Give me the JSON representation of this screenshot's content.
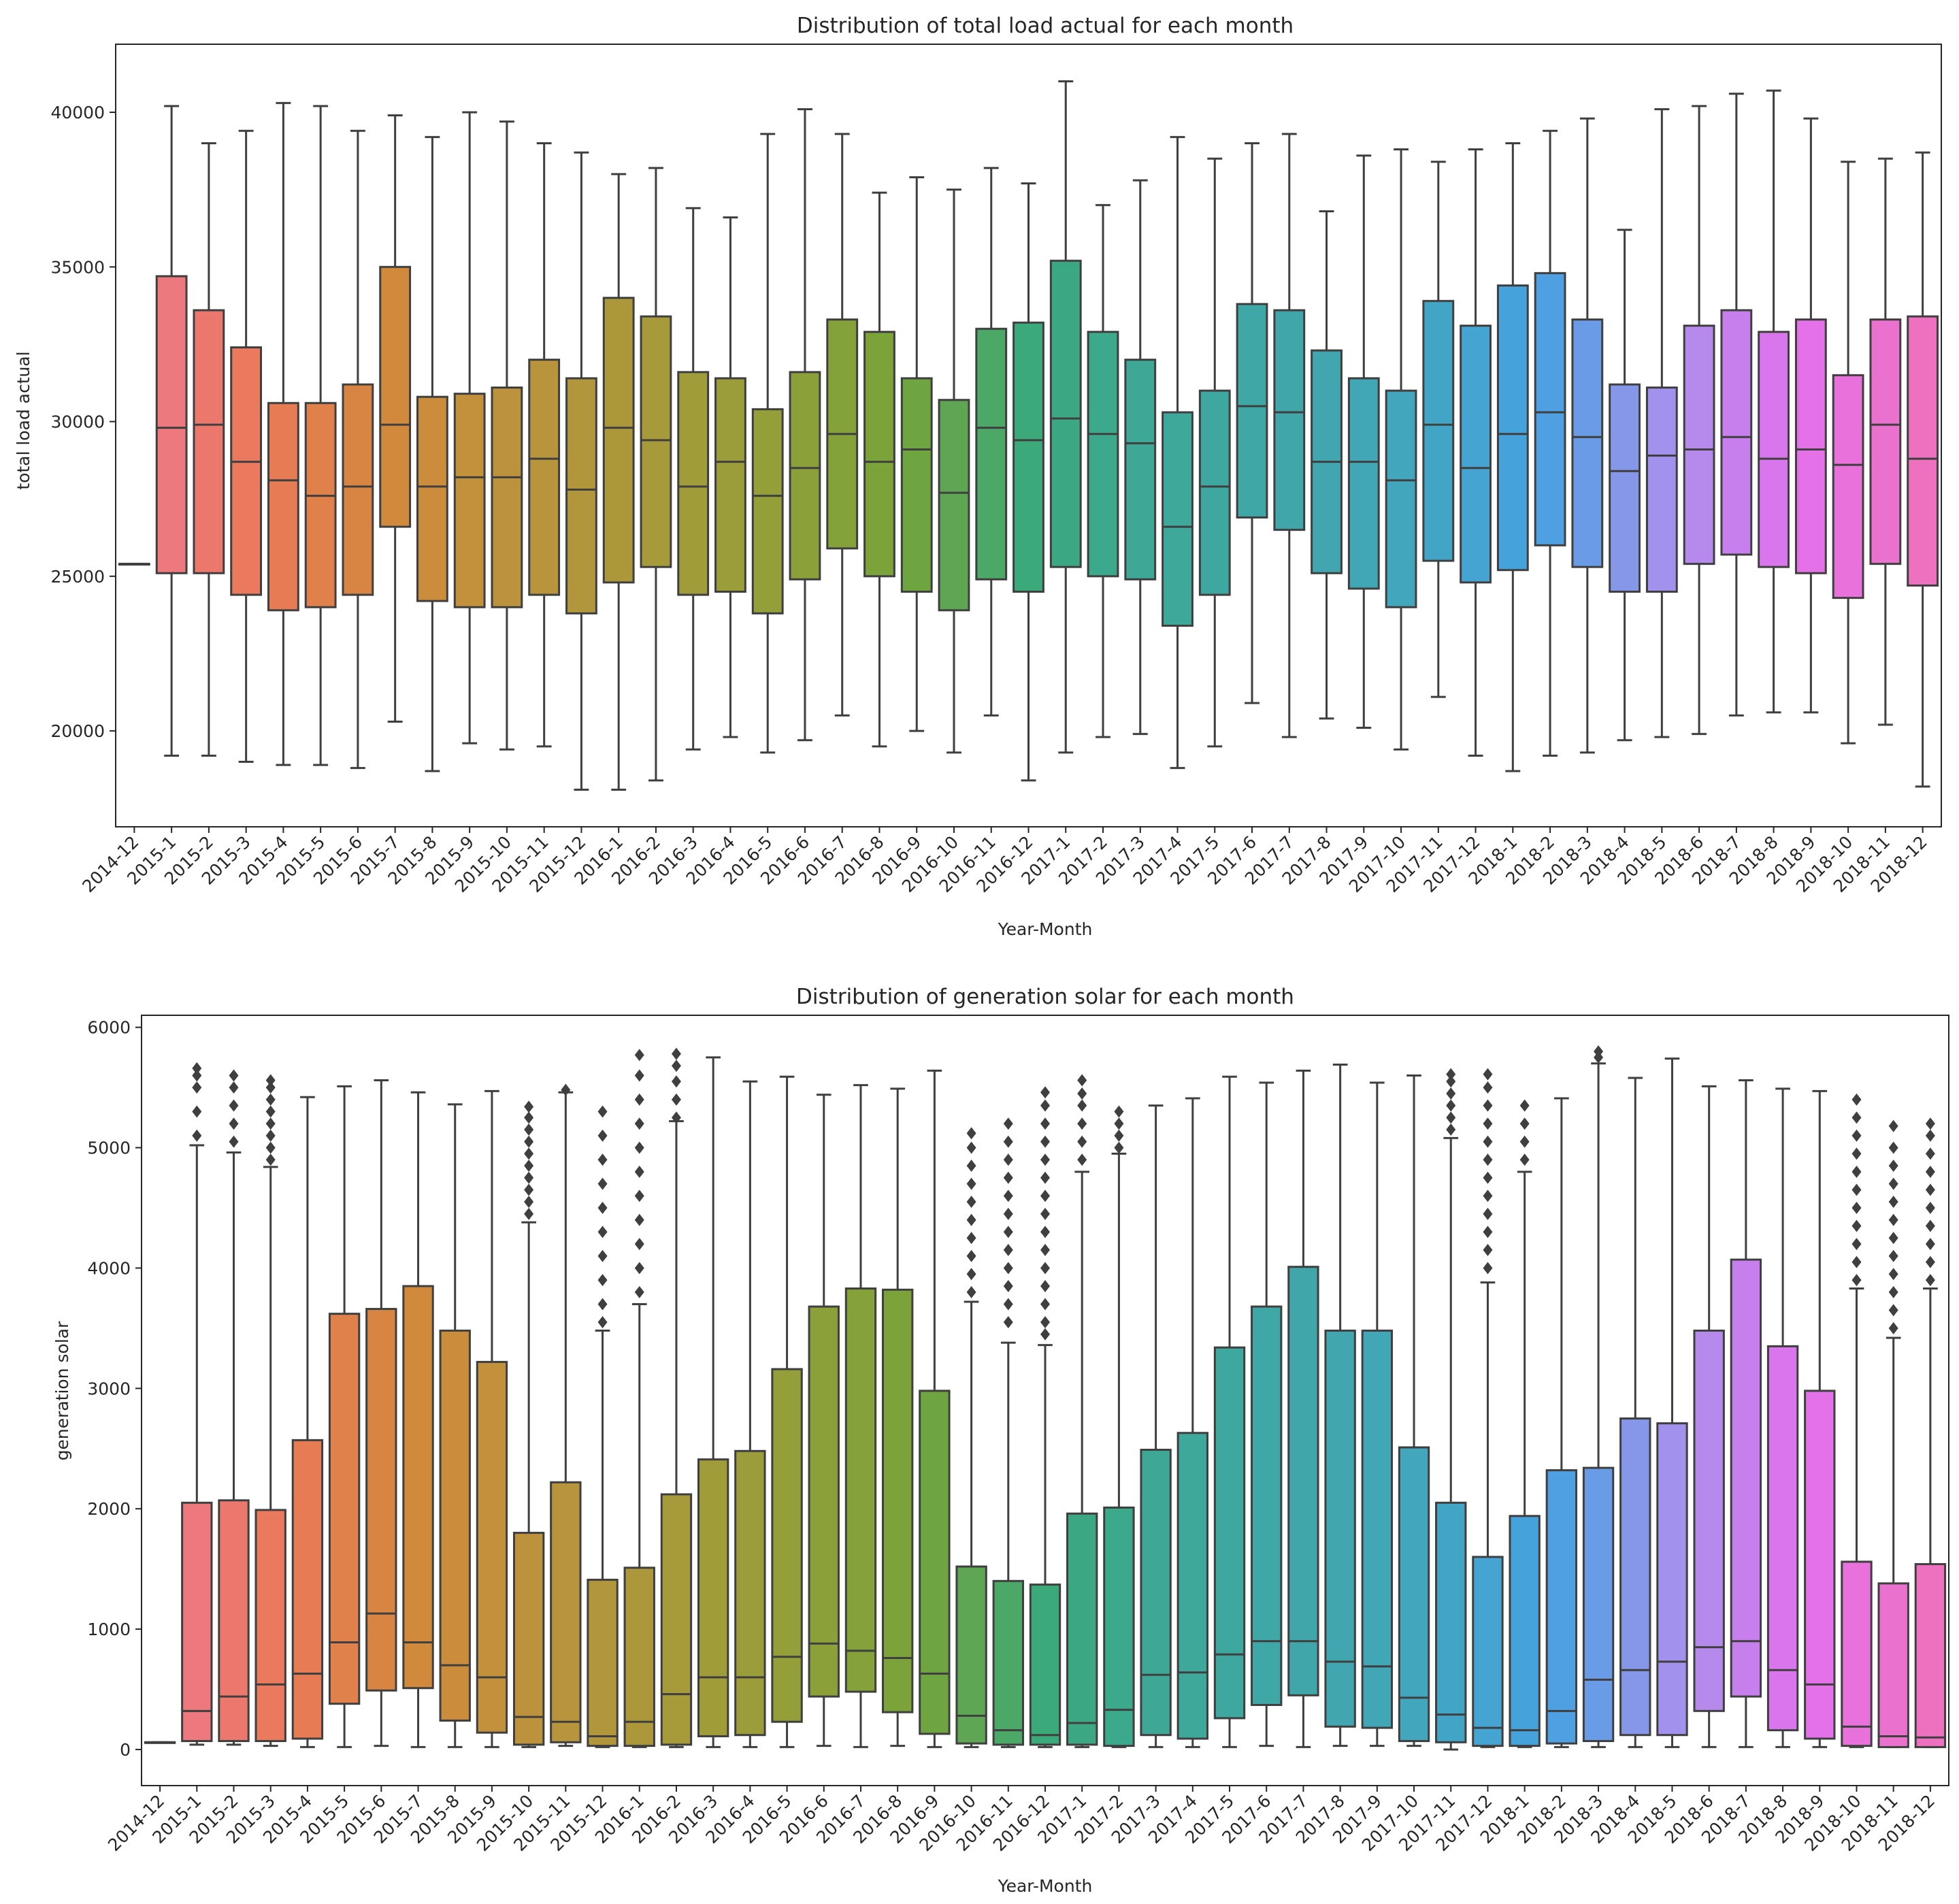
{
  "chart_data": [
    {
      "type": "box",
      "title": "Distribution of total load actual for each month",
      "xlabel": "Year-Month",
      "ylabel": "total load actual",
      "ylim": [
        16900,
        42200
      ],
      "yticks": [
        20000,
        25000,
        30000,
        35000,
        40000
      ],
      "categories": [
        "2014-12",
        "2015-1",
        "2015-2",
        "2015-3",
        "2015-4",
        "2015-5",
        "2015-6",
        "2015-7",
        "2015-8",
        "2015-9",
        "2015-10",
        "2015-11",
        "2015-12",
        "2016-1",
        "2016-2",
        "2016-3",
        "2016-4",
        "2016-5",
        "2016-6",
        "2016-7",
        "2016-8",
        "2016-9",
        "2016-10",
        "2016-11",
        "2016-12",
        "2017-1",
        "2017-2",
        "2017-3",
        "2017-4",
        "2017-5",
        "2017-6",
        "2017-7",
        "2017-8",
        "2017-9",
        "2017-10",
        "2017-11",
        "2017-12",
        "2018-1",
        "2018-2",
        "2018-3",
        "2018-4",
        "2018-5",
        "2018-6",
        "2018-7",
        "2018-8",
        "2018-9",
        "2018-10",
        "2018-11",
        "2018-12"
      ],
      "stats": [
        [
          25400,
          25400,
          25400,
          25400,
          25400
        ],
        [
          19200,
          25100,
          29800,
          34700,
          40200
        ],
        [
          19200,
          25100,
          29900,
          33600,
          39000
        ],
        [
          19000,
          24400,
          28700,
          32400,
          39400
        ],
        [
          18900,
          23900,
          28100,
          30600,
          40300
        ],
        [
          18900,
          24000,
          27600,
          30600,
          40200
        ],
        [
          18800,
          24400,
          27900,
          31200,
          39400
        ],
        [
          20300,
          26600,
          29900,
          35000,
          39900
        ],
        [
          18700,
          24200,
          27900,
          30800,
          39200
        ],
        [
          19600,
          24000,
          28200,
          30900,
          40000
        ],
        [
          19400,
          24000,
          28200,
          31100,
          39700
        ],
        [
          19500,
          24400,
          28800,
          32000,
          39000
        ],
        [
          18100,
          23800,
          27800,
          31400,
          38700
        ],
        [
          18100,
          24800,
          29800,
          34000,
          38000
        ],
        [
          18400,
          25300,
          29400,
          33400,
          38200
        ],
        [
          19400,
          24400,
          27900,
          31600,
          36900
        ],
        [
          19800,
          24500,
          28700,
          31400,
          36600
        ],
        [
          19300,
          23800,
          27600,
          30400,
          39300
        ],
        [
          19700,
          24900,
          28500,
          31600,
          40100
        ],
        [
          20500,
          25900,
          29600,
          33300,
          39300
        ],
        [
          19500,
          25000,
          28700,
          32900,
          37400
        ],
        [
          20000,
          24500,
          29100,
          31400,
          37900
        ],
        [
          19300,
          23900,
          27700,
          30700,
          37500
        ],
        [
          20500,
          24900,
          29800,
          33000,
          38200
        ],
        [
          18400,
          24500,
          29400,
          33200,
          37700
        ],
        [
          19300,
          25300,
          30100,
          35200,
          41000
        ],
        [
          19800,
          25000,
          29600,
          32900,
          37000
        ],
        [
          19900,
          24900,
          29300,
          32000,
          37800
        ],
        [
          18800,
          23400,
          26600,
          30300,
          39200
        ],
        [
          19500,
          24400,
          27900,
          31000,
          38500
        ],
        [
          20900,
          26900,
          30500,
          33800,
          39000
        ],
        [
          19800,
          26500,
          30300,
          33600,
          39300
        ],
        [
          20400,
          25100,
          28700,
          32300,
          36800
        ],
        [
          20100,
          24600,
          28700,
          31400,
          38600
        ],
        [
          19400,
          24000,
          28100,
          31000,
          38800
        ],
        [
          21100,
          25500,
          29900,
          33900,
          38400
        ],
        [
          19200,
          24800,
          28500,
          33100,
          38800
        ],
        [
          18700,
          25200,
          29600,
          34400,
          39000
        ],
        [
          19200,
          26000,
          30300,
          34800,
          39400
        ],
        [
          19300,
          25300,
          29500,
          33300,
          39800
        ],
        [
          19700,
          24500,
          28400,
          31200,
          36200
        ],
        [
          19800,
          24500,
          28900,
          31100,
          40100
        ],
        [
          19900,
          25400,
          29100,
          33100,
          40200
        ],
        [
          20500,
          25700,
          29500,
          33600,
          40600
        ],
        [
          20600,
          25300,
          28800,
          32900,
          40700
        ],
        [
          20600,
          25100,
          29100,
          33300,
          39800
        ],
        [
          19600,
          24300,
          28600,
          31500,
          38400
        ],
        [
          20200,
          25400,
          29900,
          33300,
          38500
        ],
        [
          18200,
          24700,
          28800,
          33400,
          38700
        ]
      ]
    },
    {
      "type": "box",
      "title": "Distribution of generation solar for each month",
      "xlabel": "Year-Month",
      "ylabel": "generation solar",
      "ylim": [
        -300,
        6100
      ],
      "yticks": [
        0,
        1000,
        2000,
        3000,
        4000,
        5000,
        6000
      ],
      "categories": [
        "2014-12",
        "2015-1",
        "2015-2",
        "2015-3",
        "2015-4",
        "2015-5",
        "2015-6",
        "2015-7",
        "2015-8",
        "2015-9",
        "2015-10",
        "2015-11",
        "2015-12",
        "2016-1",
        "2016-2",
        "2016-3",
        "2016-4",
        "2016-5",
        "2016-6",
        "2016-7",
        "2016-8",
        "2016-9",
        "2016-10",
        "2016-11",
        "2016-12",
        "2017-1",
        "2017-2",
        "2017-3",
        "2017-4",
        "2017-5",
        "2017-6",
        "2017-7",
        "2017-8",
        "2017-9",
        "2017-10",
        "2017-11",
        "2017-12",
        "2018-1",
        "2018-2",
        "2018-3",
        "2018-4",
        "2018-5",
        "2018-6",
        "2018-7",
        "2018-8",
        "2018-9",
        "2018-10",
        "2018-11",
        "2018-12"
      ],
      "stats": [
        [
          60,
          60,
          60,
          60,
          60
        ],
        [
          40,
          70,
          320,
          2050,
          5020
        ],
        [
          40,
          70,
          440,
          2070,
          4960
        ],
        [
          30,
          70,
          540,
          1990,
          4840
        ],
        [
          20,
          90,
          630,
          2570,
          5420
        ],
        [
          20,
          380,
          890,
          3620,
          5510
        ],
        [
          30,
          490,
          1130,
          3660,
          5560
        ],
        [
          20,
          510,
          890,
          3850,
          5460
        ],
        [
          20,
          240,
          700,
          3480,
          5360
        ],
        [
          20,
          140,
          600,
          3220,
          5470
        ],
        [
          20,
          40,
          270,
          1800,
          4380
        ],
        [
          30,
          60,
          230,
          2220,
          5460
        ],
        [
          20,
          30,
          110,
          1410,
          3480
        ],
        [
          20,
          30,
          230,
          1510,
          3700
        ],
        [
          20,
          40,
          460,
          2120,
          5220
        ],
        [
          20,
          110,
          600,
          2410,
          5750
        ],
        [
          20,
          120,
          600,
          2480,
          5550
        ],
        [
          20,
          230,
          770,
          3160,
          5590
        ],
        [
          30,
          440,
          880,
          3680,
          5440
        ],
        [
          20,
          480,
          820,
          3830,
          5520
        ],
        [
          30,
          310,
          760,
          3820,
          5490
        ],
        [
          20,
          130,
          630,
          2980,
          5640
        ],
        [
          20,
          50,
          280,
          1520,
          3720
        ],
        [
          20,
          40,
          160,
          1400,
          3380
        ],
        [
          20,
          40,
          120,
          1370,
          3360
        ],
        [
          20,
          40,
          220,
          1960,
          4800
        ],
        [
          20,
          30,
          330,
          2010,
          4950
        ],
        [
          20,
          120,
          620,
          2490,
          5350
        ],
        [
          20,
          90,
          640,
          2630,
          5410
        ],
        [
          20,
          260,
          790,
          3340,
          5590
        ],
        [
          30,
          370,
          900,
          3680,
          5540
        ],
        [
          20,
          450,
          900,
          4010,
          5640
        ],
        [
          30,
          190,
          730,
          3480,
          5690
        ],
        [
          30,
          180,
          690,
          3480,
          5540
        ],
        [
          30,
          70,
          430,
          2510,
          5600
        ],
        [
          0,
          60,
          290,
          2050,
          5080
        ],
        [
          20,
          30,
          180,
          1600,
          3880
        ],
        [
          20,
          30,
          160,
          1940,
          4800
        ],
        [
          20,
          50,
          320,
          2320,
          5410
        ],
        [
          20,
          70,
          580,
          2340,
          5700
        ],
        [
          20,
          120,
          660,
          2750,
          5580
        ],
        [
          20,
          120,
          730,
          2710,
          5740
        ],
        [
          20,
          320,
          850,
          3480,
          5510
        ],
        [
          20,
          440,
          900,
          4070,
          5560
        ],
        [
          20,
          160,
          660,
          3350,
          5490
        ],
        [
          20,
          90,
          540,
          2980,
          5470
        ],
        [
          20,
          30,
          190,
          1560,
          3830
        ],
        [
          20,
          20,
          110,
          1380,
          3420
        ],
        [
          20,
          20,
          100,
          1540,
          3830
        ]
      ],
      "outliers": {
        "1": [
          5100,
          5300,
          5500,
          5600,
          5660
        ],
        "2": [
          5050,
          5200,
          5350,
          5500,
          5600
        ],
        "3": [
          4900,
          5000,
          5100,
          5200,
          5300,
          5400,
          5500,
          5560
        ],
        "10": [
          4450,
          4550,
          4650,
          4750,
          4850,
          4950,
          5050,
          5150,
          5250,
          5340
        ],
        "11": [
          5480
        ],
        "12": [
          3550,
          3700,
          3900,
          4100,
          4300,
          4500,
          4700,
          4900,
          5100,
          5300
        ],
        "13": [
          3800,
          4000,
          4200,
          4400,
          4600,
          4800,
          5000,
          5200,
          5400,
          5600,
          5770
        ],
        "14": [
          5250,
          5400,
          5550,
          5680,
          5780
        ],
        "22": [
          3800,
          3950,
          4100,
          4250,
          4400,
          4550,
          4700,
          4850,
          5000,
          5120
        ],
        "23": [
          3550,
          3700,
          3850,
          4000,
          4150,
          4300,
          4450,
          4600,
          4750,
          4900,
          5050,
          5200
        ],
        "24": [
          3450,
          3550,
          3700,
          3850,
          4000,
          4150,
          4300,
          4450,
          4600,
          4750,
          4900,
          5050,
          5200,
          5350,
          5460
        ],
        "25": [
          4900,
          5050,
          5200,
          5350,
          5450,
          5560
        ],
        "26": [
          5000,
          5100,
          5200,
          5300
        ],
        "35": [
          5150,
          5250,
          5350,
          5450,
          5550,
          5610
        ],
        "36": [
          4000,
          4150,
          4300,
          4450,
          4600,
          4750,
          4900,
          5050,
          5200,
          5350,
          5500,
          5610
        ],
        "37": [
          4900,
          5050,
          5200,
          5350
        ],
        "39": [
          5750,
          5800
        ],
        "46": [
          3900,
          4050,
          4200,
          4350,
          4500,
          4650,
          4800,
          4950,
          5100,
          5250,
          5400
        ],
        "47": [
          3500,
          3650,
          3800,
          3950,
          4100,
          4250,
          4400,
          4550,
          4700,
          4850,
          5000,
          5180
        ],
        "48": [
          3900,
          4050,
          4200,
          4350,
          4500,
          4650,
          4800,
          4950,
          5100,
          5200
        ]
      }
    }
  ],
  "palette": [
    "#f77189",
    "#f7754f",
    "#dc8932",
    "#c39532",
    "#ae9d31",
    "#97a431",
    "#77ab31",
    "#33b07a",
    "#35ad9c",
    "#36abae",
    "#38a9c5",
    "#3ba3ec",
    "#a48cf4",
    "#e866f4",
    "#f668c2"
  ]
}
